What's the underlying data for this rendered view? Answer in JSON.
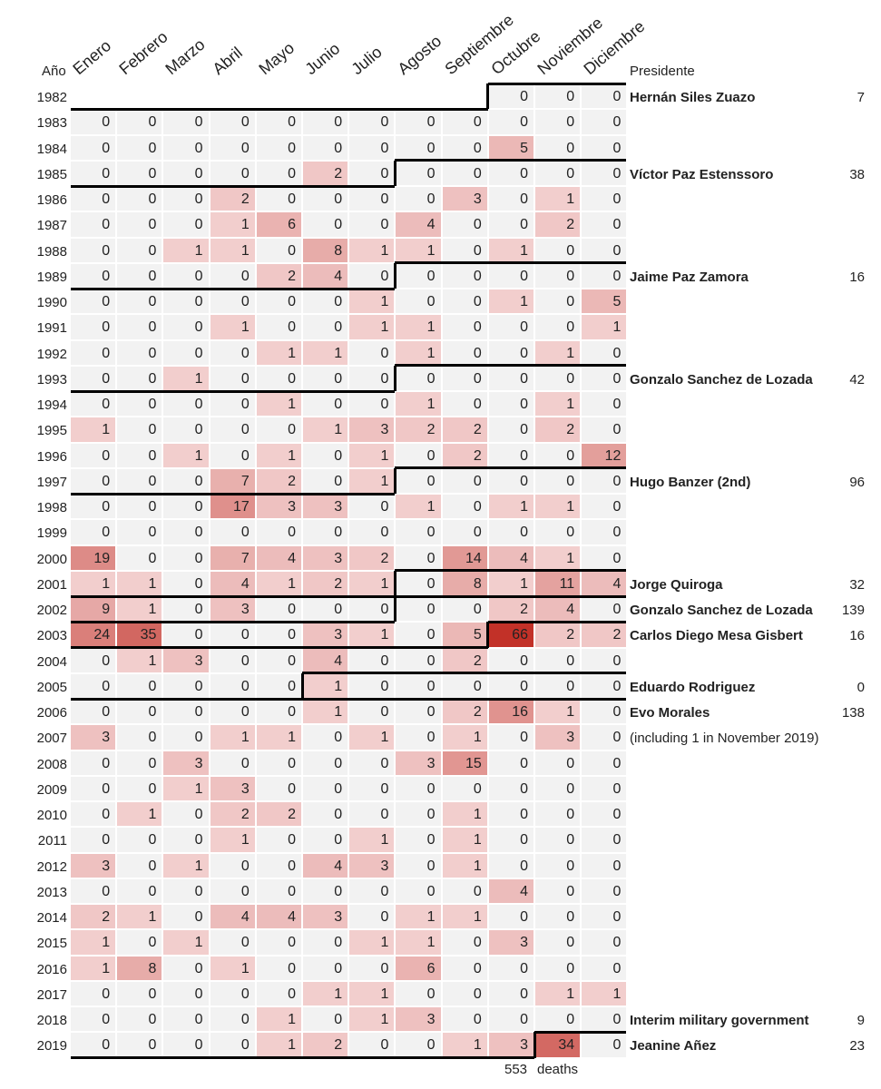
{
  "chart_data": {
    "type": "heatmap",
    "title": "",
    "row_header": "Año",
    "president_header": "Presidente",
    "months": [
      "Enero",
      "Febrero",
      "Marzo",
      "Abril",
      "Mayo",
      "Junio",
      "Julio",
      "Agosto",
      "Septiembre",
      "Octubre",
      "Noviembre",
      "Diciembre"
    ],
    "years": [
      1982,
      1983,
      1984,
      1985,
      1986,
      1987,
      1988,
      1989,
      1990,
      1991,
      1992,
      1993,
      1994,
      1995,
      1996,
      1997,
      1998,
      1999,
      2000,
      2001,
      2002,
      2003,
      2004,
      2005,
      2006,
      2007,
      2008,
      2009,
      2010,
      2011,
      2012,
      2013,
      2014,
      2015,
      2016,
      2017,
      2018,
      2019
    ],
    "values": [
      [
        null,
        null,
        null,
        null,
        null,
        null,
        null,
        null,
        null,
        0,
        0,
        0
      ],
      [
        0,
        0,
        0,
        0,
        0,
        0,
        0,
        0,
        0,
        0,
        0,
        0
      ],
      [
        0,
        0,
        0,
        0,
        0,
        0,
        0,
        0,
        0,
        5,
        0,
        0
      ],
      [
        0,
        0,
        0,
        0,
        0,
        2,
        0,
        0,
        0,
        0,
        0,
        0
      ],
      [
        0,
        0,
        0,
        2,
        0,
        0,
        0,
        0,
        3,
        0,
        1,
        0
      ],
      [
        0,
        0,
        0,
        1,
        6,
        0,
        0,
        4,
        0,
        0,
        2,
        0
      ],
      [
        0,
        0,
        1,
        1,
        0,
        8,
        1,
        1,
        0,
        1,
        0,
        0
      ],
      [
        0,
        0,
        0,
        0,
        2,
        4,
        0,
        0,
        0,
        0,
        0,
        0
      ],
      [
        0,
        0,
        0,
        0,
        0,
        0,
        1,
        0,
        0,
        1,
        0,
        5
      ],
      [
        0,
        0,
        0,
        1,
        0,
        0,
        1,
        1,
        0,
        0,
        0,
        1
      ],
      [
        0,
        0,
        0,
        0,
        1,
        1,
        0,
        1,
        0,
        0,
        1,
        0
      ],
      [
        0,
        0,
        1,
        0,
        0,
        0,
        0,
        0,
        0,
        0,
        0,
        0
      ],
      [
        0,
        0,
        0,
        0,
        1,
        0,
        0,
        1,
        0,
        0,
        1,
        0
      ],
      [
        1,
        0,
        0,
        0,
        0,
        1,
        3,
        2,
        2,
        0,
        2,
        0
      ],
      [
        0,
        0,
        1,
        0,
        1,
        0,
        1,
        0,
        2,
        0,
        0,
        12
      ],
      [
        0,
        0,
        0,
        7,
        2,
        0,
        1,
        0,
        0,
        0,
        0,
        0
      ],
      [
        0,
        0,
        0,
        17,
        3,
        3,
        0,
        1,
        0,
        1,
        1,
        0
      ],
      [
        0,
        0,
        0,
        0,
        0,
        0,
        0,
        0,
        0,
        0,
        0,
        0
      ],
      [
        19,
        0,
        0,
        7,
        4,
        3,
        2,
        0,
        14,
        4,
        1,
        0
      ],
      [
        1,
        1,
        0,
        4,
        1,
        2,
        1,
        0,
        8,
        1,
        11,
        4
      ],
      [
        9,
        1,
        0,
        3,
        0,
        0,
        0,
        0,
        0,
        2,
        4,
        0
      ],
      [
        24,
        35,
        0,
        0,
        0,
        3,
        1,
        0,
        5,
        66,
        2,
        2
      ],
      [
        0,
        1,
        3,
        0,
        0,
        4,
        0,
        0,
        2,
        0,
        0,
        0
      ],
      [
        0,
        0,
        0,
        0,
        0,
        1,
        0,
        0,
        0,
        0,
        0,
        0
      ],
      [
        0,
        0,
        0,
        0,
        0,
        1,
        0,
        0,
        2,
        16,
        1,
        0
      ],
      [
        3,
        0,
        0,
        1,
        1,
        0,
        1,
        0,
        1,
        0,
        3,
        0
      ],
      [
        0,
        0,
        3,
        0,
        0,
        0,
        0,
        3,
        15,
        0,
        0,
        0
      ],
      [
        0,
        0,
        1,
        3,
        0,
        0,
        0,
        0,
        0,
        0,
        0,
        0
      ],
      [
        0,
        1,
        0,
        2,
        2,
        0,
        0,
        0,
        1,
        0,
        0,
        0
      ],
      [
        0,
        0,
        0,
        1,
        0,
        0,
        1,
        0,
        1,
        0,
        0,
        0
      ],
      [
        3,
        0,
        1,
        0,
        0,
        4,
        3,
        0,
        1,
        0,
        0,
        0
      ],
      [
        0,
        0,
        0,
        0,
        0,
        0,
        0,
        0,
        0,
        4,
        0,
        0
      ],
      [
        2,
        1,
        0,
        4,
        4,
        3,
        0,
        1,
        1,
        0,
        0,
        0
      ],
      [
        1,
        0,
        1,
        0,
        0,
        0,
        1,
        1,
        0,
        3,
        0,
        0
      ],
      [
        1,
        8,
        0,
        1,
        0,
        0,
        0,
        6,
        0,
        0,
        0,
        0
      ],
      [
        0,
        0,
        0,
        0,
        0,
        1,
        1,
        0,
        0,
        0,
        1,
        1
      ],
      [
        0,
        0,
        0,
        0,
        1,
        0,
        1,
        3,
        0,
        0,
        0,
        0
      ],
      [
        0,
        0,
        0,
        0,
        1,
        2,
        0,
        0,
        1,
        3,
        34,
        0
      ]
    ],
    "presidencies": [
      {
        "name": "Hernán Siles Zuazo",
        "total": "7",
        "start_year": 1982,
        "start_month": 10
      },
      {
        "name": "Víctor Paz Estenssoro",
        "total": "38",
        "start_year": 1985,
        "start_month": 8
      },
      {
        "name": "Jaime Paz Zamora",
        "total": "16",
        "start_year": 1989,
        "start_month": 8
      },
      {
        "name": "Gonzalo Sanchez de Lozada",
        "total": "42",
        "start_year": 1993,
        "start_month": 8
      },
      {
        "name": "Hugo Banzer (2nd)",
        "total": "96",
        "start_year": 1997,
        "start_month": 8
      },
      {
        "name": "Jorge Quiroga",
        "total": "32",
        "start_year": 2001,
        "start_month": 8
      },
      {
        "name": "Gonzalo Sanchez de Lozada",
        "total": "139",
        "start_year": 2002,
        "start_month": 8
      },
      {
        "name": "Carlos Diego Mesa Gisbert",
        "total": "16",
        "start_year": 2003,
        "start_month": 10
      },
      {
        "name": "Eduardo Rodriguez",
        "total": "0",
        "start_year": 2005,
        "start_month": 6
      },
      {
        "name": "Evo Morales",
        "total": "138",
        "start_year": 2006,
        "start_month": 1,
        "note": "(including 1 in November 2019)"
      },
      {
        "name": "Interim military government",
        "total": "9",
        "start_year": 2018,
        "start_month": null
      },
      {
        "name": "Jeanine Añez",
        "total": "23",
        "start_year": 2019,
        "start_month": 11
      }
    ],
    "total_deaths": "553",
    "total_label": "deaths"
  },
  "colors": {
    "empty": "#f2f2f2",
    "low": "#f6dcdc",
    "high": "#c23128",
    "line": "#000000"
  }
}
